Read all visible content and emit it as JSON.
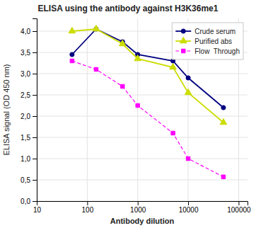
{
  "chart_data": {
    "type": "line",
    "title": "ELISA using the antibody against H3K36me1",
    "xlabel": "Antibody dilution",
    "ylabel": "ELISA signal (OD 450 nm)",
    "x": [
      50,
      150,
      500,
      1000,
      5000,
      10000,
      50000
    ],
    "series": [
      {
        "name": "Crude serum",
        "color": "#000080",
        "marker": "circle",
        "line_style": "solid",
        "values": [
          3.45,
          4.05,
          3.75,
          3.45,
          3.3,
          2.9,
          2.2
        ]
      },
      {
        "name": "Purified abs",
        "color": "#ccdd00",
        "marker": "triangle",
        "line_style": "solid",
        "values": [
          4.0,
          4.05,
          3.7,
          3.35,
          3.15,
          2.55,
          1.85
        ]
      },
      {
        "name": "Flow  Through",
        "color": "#ff00ff",
        "marker": "square",
        "line_style": "dashed",
        "values": [
          3.3,
          3.1,
          2.7,
          2.25,
          1.6,
          1.0,
          0.57
        ]
      }
    ],
    "log": "x",
    "xlim": [
      10,
      150000
    ],
    "xticks": [
      10,
      100,
      1000,
      10000,
      100000
    ],
    "ylim": [
      0.0,
      4.3
    ],
    "yticks": [
      {
        "value": 0.0,
        "label": "0,0"
      },
      {
        "value": 0.5,
        "label": "0,5"
      },
      {
        "value": 1.0,
        "label": "1,0"
      },
      {
        "value": 1.5,
        "label": "1,5"
      },
      {
        "value": 2.0,
        "label": "2,0"
      },
      {
        "value": 2.5,
        "label": "2,5"
      },
      {
        "value": 3.0,
        "label": "3,0"
      },
      {
        "value": 3.5,
        "label": "3,5"
      },
      {
        "value": 4.0,
        "label": "4,0"
      }
    ],
    "grid": true,
    "legend": "upper right"
  }
}
